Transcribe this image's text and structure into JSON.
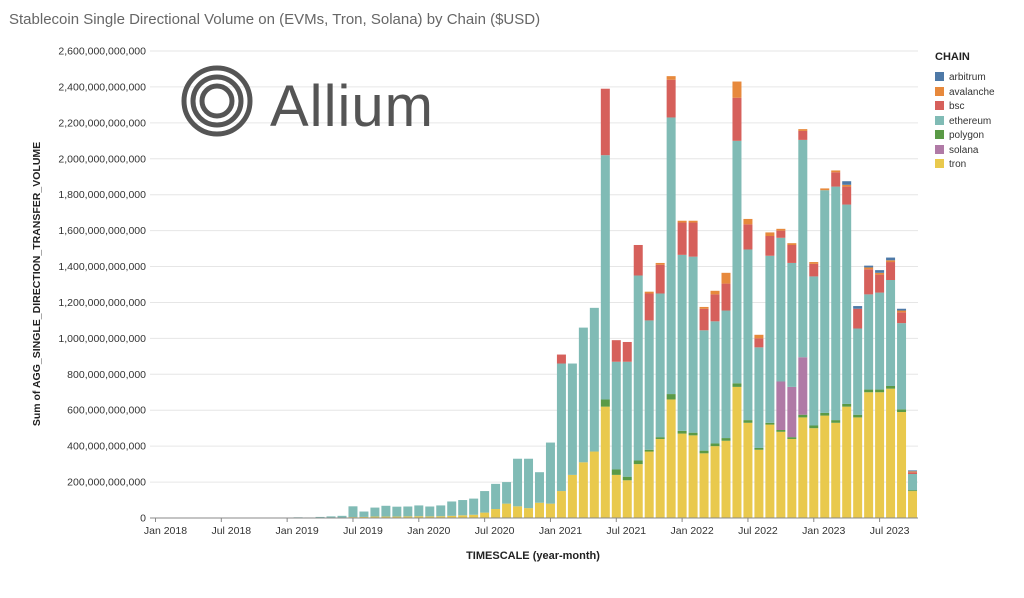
{
  "chart_data": {
    "type": "bar",
    "stacked": true,
    "title": "Stablecoin Single Directional Volume on (EVMs, Tron, Solana) by Chain ($USD)",
    "xlabel": "TIMESCALE (year-month)",
    "ylabel": "Sum of AGG_SINGLE_DIRECTION_TRANSFER_VOLUME",
    "ylim": [
      0,
      2600000000000
    ],
    "y_ticks": [
      "0",
      "200,000,000,000",
      "400,000,000,000",
      "600,000,000,000",
      "800,000,000,000",
      "1,000,000,000,000",
      "1,200,000,000,000",
      "1,400,000,000,000",
      "1,600,000,000,000",
      "1,800,000,000,000",
      "2,000,000,000,000",
      "2,200,000,000,000",
      "2,400,000,000,000",
      "2,600,000,000,000"
    ],
    "x_ticks": [
      "Jan 2018",
      "Jul 2018",
      "Jan 2019",
      "Jul 2019",
      "Jan 2020",
      "Jul 2020",
      "Jan 2021",
      "Jul 2021",
      "Jan 2022",
      "Jul 2022",
      "Jan 2023",
      "Jul 2023"
    ],
    "grid": true,
    "legend_position": "right",
    "legend_title": "CHAIN",
    "categories": [
      "2018-01",
      "2018-02",
      "2018-03",
      "2018-04",
      "2018-05",
      "2018-06",
      "2018-07",
      "2018-08",
      "2018-09",
      "2018-10",
      "2018-11",
      "2018-12",
      "2019-01",
      "2019-02",
      "2019-03",
      "2019-04",
      "2019-05",
      "2019-06",
      "2019-07",
      "2019-08",
      "2019-09",
      "2019-10",
      "2019-11",
      "2019-12",
      "2020-01",
      "2020-02",
      "2020-03",
      "2020-04",
      "2020-05",
      "2020-06",
      "2020-07",
      "2020-08",
      "2020-09",
      "2020-10",
      "2020-11",
      "2020-12",
      "2021-01",
      "2021-02",
      "2021-03",
      "2021-04",
      "2021-05",
      "2021-06",
      "2021-07",
      "2021-08",
      "2021-09",
      "2021-10",
      "2021-11",
      "2021-12",
      "2022-01",
      "2022-02",
      "2022-03",
      "2022-04",
      "2022-05",
      "2022-06",
      "2022-07",
      "2022-08",
      "2022-09",
      "2022-10",
      "2022-11",
      "2022-12",
      "2023-01",
      "2023-02",
      "2023-03",
      "2023-04",
      "2023-05",
      "2023-06",
      "2023-07",
      "2023-08",
      "2023-09",
      "2023-10"
    ],
    "series": [
      {
        "name": "tron",
        "color": "#e9c94d",
        "values": [
          0,
          0,
          0,
          0,
          0,
          0,
          0,
          0,
          0,
          0,
          0,
          0,
          0,
          0,
          0,
          1,
          1,
          2,
          5,
          6,
          8,
          8,
          8,
          9,
          10,
          9,
          10,
          12,
          15,
          18,
          30,
          50,
          80,
          65,
          55,
          85,
          80,
          150,
          240,
          310,
          370,
          620,
          240,
          210,
          300,
          370,
          440,
          660,
          470,
          460,
          360,
          400,
          430,
          730,
          530,
          380,
          520,
          480,
          440,
          560,
          500,
          570,
          530,
          620,
          560,
          700,
          700,
          720,
          590,
          150
        ]
      },
      {
        "name": "polygon",
        "color": "#5a9a46",
        "values": [
          0,
          0,
          0,
          0,
          0,
          0,
          0,
          0,
          0,
          0,
          0,
          0,
          0,
          0,
          0,
          0,
          0,
          0,
          0,
          0,
          0,
          0,
          0,
          0,
          0,
          0,
          0,
          0,
          0,
          0,
          0,
          0,
          0,
          0,
          0,
          0,
          0,
          0,
          0,
          0,
          0,
          40,
          30,
          20,
          20,
          10,
          10,
          30,
          15,
          15,
          15,
          15,
          15,
          20,
          15,
          10,
          10,
          10,
          10,
          15,
          15,
          15,
          15,
          15,
          15,
          15,
          15,
          15,
          15,
          5
        ]
      },
      {
        "name": "solana",
        "color": "#b07aa6",
        "values": [
          0,
          0,
          0,
          0,
          0,
          0,
          0,
          0,
          0,
          0,
          0,
          0,
          0,
          0,
          0,
          0,
          0,
          0,
          0,
          0,
          0,
          0,
          0,
          0,
          0,
          0,
          0,
          0,
          0,
          0,
          0,
          0,
          0,
          0,
          0,
          0,
          0,
          0,
          0,
          0,
          0,
          0,
          0,
          0,
          0,
          0,
          0,
          0,
          0,
          0,
          0,
          0,
          0,
          0,
          0,
          0,
          0,
          270,
          280,
          320,
          0,
          0,
          0,
          0,
          0,
          0,
          0,
          0,
          0,
          0
        ]
      },
      {
        "name": "ethereum",
        "color": "#80bbb5",
        "values": [
          0,
          0,
          0,
          0,
          0,
          0,
          0,
          0,
          0,
          0,
          0,
          0,
          2,
          4,
          3,
          5,
          8,
          10,
          60,
          30,
          50,
          60,
          55,
          55,
          60,
          55,
          60,
          80,
          85,
          90,
          120,
          140,
          120,
          265,
          275,
          170,
          340,
          710,
          620,
          750,
          800,
          1360,
          600,
          640,
          1030,
          720,
          800,
          1540,
          980,
          980,
          670,
          680,
          710,
          1350,
          950,
          560,
          930,
          800,
          690,
          1210,
          830,
          1240,
          1300,
          1110,
          480,
          530,
          540,
          590,
          480,
          90
        ]
      },
      {
        "name": "bsc",
        "color": "#d6605b",
        "values": [
          0,
          0,
          0,
          0,
          0,
          0,
          0,
          0,
          0,
          0,
          0,
          0,
          0,
          0,
          0,
          0,
          0,
          0,
          0,
          0,
          0,
          0,
          0,
          0,
          0,
          0,
          0,
          0,
          0,
          0,
          0,
          0,
          0,
          0,
          0,
          0,
          0,
          50,
          0,
          0,
          0,
          370,
          120,
          110,
          170,
          150,
          160,
          210,
          180,
          190,
          120,
          150,
          150,
          240,
          140,
          50,
          110,
          40,
          100,
          50,
          70,
          0,
          80,
          100,
          110,
          140,
          100,
          100,
          60,
          10
        ]
      },
      {
        "name": "avalanche",
        "color": "#e7893c",
        "values": [
          0,
          0,
          0,
          0,
          0,
          0,
          0,
          0,
          0,
          0,
          0,
          0,
          0,
          0,
          0,
          0,
          0,
          0,
          0,
          0,
          0,
          0,
          0,
          0,
          0,
          0,
          0,
          0,
          0,
          0,
          0,
          0,
          0,
          0,
          0,
          0,
          0,
          0,
          0,
          0,
          0,
          0,
          0,
          0,
          0,
          10,
          10,
          20,
          10,
          10,
          10,
          20,
          60,
          90,
          30,
          20,
          20,
          10,
          10,
          10,
          10,
          10,
          10,
          10,
          0,
          10,
          10,
          10,
          10,
          5
        ]
      },
      {
        "name": "arbitrum",
        "color": "#4e79a7",
        "values": [
          0,
          0,
          0,
          0,
          0,
          0,
          0,
          0,
          0,
          0,
          0,
          0,
          0,
          0,
          0,
          0,
          0,
          0,
          0,
          0,
          0,
          0,
          0,
          0,
          0,
          0,
          0,
          0,
          0,
          0,
          0,
          0,
          0,
          0,
          0,
          0,
          0,
          0,
          0,
          0,
          0,
          0,
          0,
          0,
          0,
          0,
          0,
          0,
          0,
          0,
          0,
          0,
          0,
          0,
          0,
          0,
          0,
          0,
          0,
          0,
          0,
          0,
          0,
          20,
          15,
          10,
          15,
          15,
          10,
          5
        ]
      }
    ],
    "legend_order": [
      "arbitrum",
      "avalanche",
      "bsc",
      "ethereum",
      "polygon",
      "solana",
      "tron"
    ]
  },
  "branding": {
    "logo_text": "Allium"
  }
}
